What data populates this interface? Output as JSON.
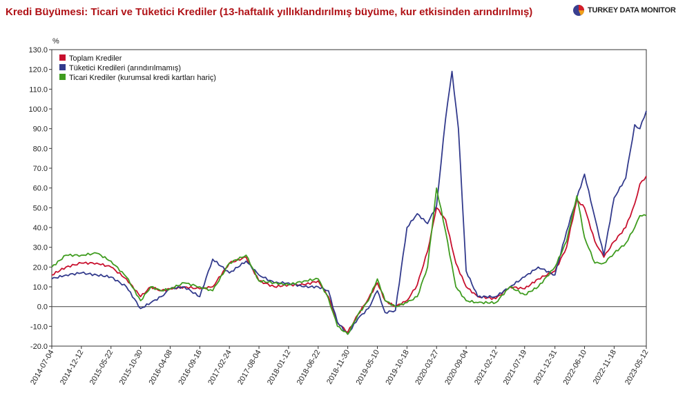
{
  "page": {
    "title": "Kredi Büyümesi: Ticari ve Tüketici Krediler (13-haftalık yıllıklandırılmış büyüme, kur etkisinden arındırılmış)",
    "brand_name": "TURKEY DATA MONITOR"
  },
  "chart_data": {
    "type": "line",
    "ylabel": "%",
    "ylim": [
      -20,
      130
    ],
    "ytick_step": 10,
    "grid": false,
    "legend_position": "top-left",
    "x_dates": [
      "2014-07-04",
      "2014-12-12",
      "2015-05-22",
      "2015-10-30",
      "2016-04-08",
      "2016-09-16",
      "2017-02-24",
      "2017-08-04",
      "2018-01-12",
      "2018-06-22",
      "2018-11-30",
      "2019-05-10",
      "2019-10-18",
      "2020-03-27",
      "2020-09-04",
      "2021-02-12",
      "2021-07-19",
      "2021-12-31",
      "2022-06-10",
      "2022-11-18",
      "2023-05-12"
    ],
    "series": [
      {
        "name": "Toplam Krediler",
        "color": "#c8102e",
        "points": [
          [
            "2014-07-04",
            16
          ],
          [
            "2014-09-19",
            20
          ],
          [
            "2014-12-12",
            22
          ],
          [
            "2015-03-06",
            22
          ],
          [
            "2015-05-22",
            20
          ],
          [
            "2015-08-14",
            14
          ],
          [
            "2015-10-30",
            5
          ],
          [
            "2015-12-25",
            10
          ],
          [
            "2016-02-19",
            8
          ],
          [
            "2016-04-08",
            9
          ],
          [
            "2016-06-24",
            10
          ],
          [
            "2016-09-16",
            9
          ],
          [
            "2016-11-25",
            10
          ],
          [
            "2017-02-24",
            22
          ],
          [
            "2017-05-26",
            25
          ],
          [
            "2017-08-04",
            13
          ],
          [
            "2017-10-27",
            10
          ],
          [
            "2018-01-12",
            11
          ],
          [
            "2018-04-06",
            11
          ],
          [
            "2018-06-22",
            13
          ],
          [
            "2018-08-17",
            5
          ],
          [
            "2018-10-05",
            -8
          ],
          [
            "2018-11-30",
            -13
          ],
          [
            "2019-01-25",
            -4
          ],
          [
            "2019-03-22",
            4
          ],
          [
            "2019-05-10",
            12
          ],
          [
            "2019-06-21",
            3
          ],
          [
            "2019-08-16",
            0
          ],
          [
            "2019-10-18",
            3
          ],
          [
            "2019-12-13",
            11
          ],
          [
            "2020-02-07",
            28
          ],
          [
            "2020-03-27",
            50
          ],
          [
            "2020-05-15",
            44
          ],
          [
            "2020-07-10",
            22
          ],
          [
            "2020-09-04",
            10
          ],
          [
            "2020-11-06",
            5
          ],
          [
            "2021-02-12",
            4
          ],
          [
            "2021-04-30",
            10
          ],
          [
            "2021-07-19",
            9
          ],
          [
            "2021-10-01",
            14
          ],
          [
            "2021-12-31",
            18
          ],
          [
            "2022-03-04",
            30
          ],
          [
            "2022-04-29",
            54
          ],
          [
            "2022-06-10",
            50
          ],
          [
            "2022-08-05",
            33
          ],
          [
            "2022-09-23",
            25
          ],
          [
            "2022-11-18",
            33
          ],
          [
            "2023-01-20",
            40
          ],
          [
            "2023-03-10",
            52
          ],
          [
            "2023-04-07",
            62
          ],
          [
            "2023-05-12",
            66
          ]
        ]
      },
      {
        "name": "Tüketici Kredileri (arındırılmamış)",
        "color": "#323a8c",
        "points": [
          [
            "2014-07-04",
            14
          ],
          [
            "2014-09-19",
            16
          ],
          [
            "2014-12-12",
            17
          ],
          [
            "2015-03-06",
            16
          ],
          [
            "2015-05-22",
            15
          ],
          [
            "2015-08-14",
            10
          ],
          [
            "2015-10-30",
            -1
          ],
          [
            "2015-12-25",
            2
          ],
          [
            "2016-02-19",
            5
          ],
          [
            "2016-04-08",
            9
          ],
          [
            "2016-06-24",
            10
          ],
          [
            "2016-09-16",
            5
          ],
          [
            "2016-11-25",
            24
          ],
          [
            "2017-02-24",
            17
          ],
          [
            "2017-05-26",
            23
          ],
          [
            "2017-08-04",
            16
          ],
          [
            "2017-10-27",
            12
          ],
          [
            "2018-01-12",
            12
          ],
          [
            "2018-04-06",
            10
          ],
          [
            "2018-06-22",
            10
          ],
          [
            "2018-08-17",
            8
          ],
          [
            "2018-10-05",
            -8
          ],
          [
            "2018-11-30",
            -14
          ],
          [
            "2019-01-25",
            -6
          ],
          [
            "2019-03-22",
            -1
          ],
          [
            "2019-05-10",
            8
          ],
          [
            "2019-06-21",
            -3
          ],
          [
            "2019-08-16",
            -2
          ],
          [
            "2019-10-18",
            40
          ],
          [
            "2019-12-13",
            47
          ],
          [
            "2020-02-07",
            42
          ],
          [
            "2020-03-27",
            51
          ],
          [
            "2020-05-15",
            95
          ],
          [
            "2020-06-19",
            119
          ],
          [
            "2020-07-24",
            90
          ],
          [
            "2020-09-04",
            18
          ],
          [
            "2020-11-06",
            5
          ],
          [
            "2021-02-12",
            5
          ],
          [
            "2021-04-30",
            10
          ],
          [
            "2021-07-19",
            15
          ],
          [
            "2021-10-01",
            20
          ],
          [
            "2021-12-31",
            16
          ],
          [
            "2022-03-04",
            38
          ],
          [
            "2022-04-29",
            55
          ],
          [
            "2022-06-10",
            67
          ],
          [
            "2022-08-05",
            45
          ],
          [
            "2022-09-23",
            26
          ],
          [
            "2022-11-18",
            55
          ],
          [
            "2023-01-20",
            65
          ],
          [
            "2023-03-10",
            92
          ],
          [
            "2023-04-07",
            90
          ],
          [
            "2023-05-12",
            99
          ]
        ]
      },
      {
        "name": "Ticari Krediler (kurumsal kredi kartları hariç)",
        "color": "#3f9c1f",
        "points": [
          [
            "2014-07-04",
            20
          ],
          [
            "2014-09-19",
            26
          ],
          [
            "2014-12-12",
            26
          ],
          [
            "2015-03-06",
            27
          ],
          [
            "2015-05-22",
            23
          ],
          [
            "2015-08-14",
            15
          ],
          [
            "2015-10-30",
            3
          ],
          [
            "2015-12-25",
            10
          ],
          [
            "2016-02-19",
            8
          ],
          [
            "2016-04-08",
            9
          ],
          [
            "2016-06-24",
            12
          ],
          [
            "2016-09-16",
            10
          ],
          [
            "2016-11-25",
            8
          ],
          [
            "2017-02-24",
            22
          ],
          [
            "2017-05-26",
            26
          ],
          [
            "2017-08-04",
            13
          ],
          [
            "2017-10-27",
            12
          ],
          [
            "2018-01-12",
            11
          ],
          [
            "2018-04-06",
            13
          ],
          [
            "2018-06-22",
            14
          ],
          [
            "2018-08-17",
            4
          ],
          [
            "2018-10-05",
            -10
          ],
          [
            "2018-11-30",
            -14
          ],
          [
            "2019-01-25",
            -4
          ],
          [
            "2019-03-22",
            3
          ],
          [
            "2019-05-10",
            14
          ],
          [
            "2019-06-21",
            3
          ],
          [
            "2019-08-16",
            0
          ],
          [
            "2019-10-18",
            2
          ],
          [
            "2019-12-13",
            5
          ],
          [
            "2020-02-07",
            20
          ],
          [
            "2020-03-27",
            60
          ],
          [
            "2020-05-15",
            38
          ],
          [
            "2020-07-10",
            10
          ],
          [
            "2020-09-04",
            3
          ],
          [
            "2020-11-06",
            2
          ],
          [
            "2021-02-12",
            2
          ],
          [
            "2021-04-30",
            10
          ],
          [
            "2021-07-19",
            6
          ],
          [
            "2021-10-01",
            10
          ],
          [
            "2021-12-31",
            20
          ],
          [
            "2022-03-04",
            33
          ],
          [
            "2022-04-29",
            56
          ],
          [
            "2022-06-10",
            35
          ],
          [
            "2022-08-05",
            22
          ],
          [
            "2022-09-23",
            22
          ],
          [
            "2022-11-18",
            27
          ],
          [
            "2023-01-20",
            32
          ],
          [
            "2023-03-10",
            40
          ],
          [
            "2023-04-07",
            46
          ],
          [
            "2023-05-12",
            46
          ]
        ]
      }
    ]
  }
}
